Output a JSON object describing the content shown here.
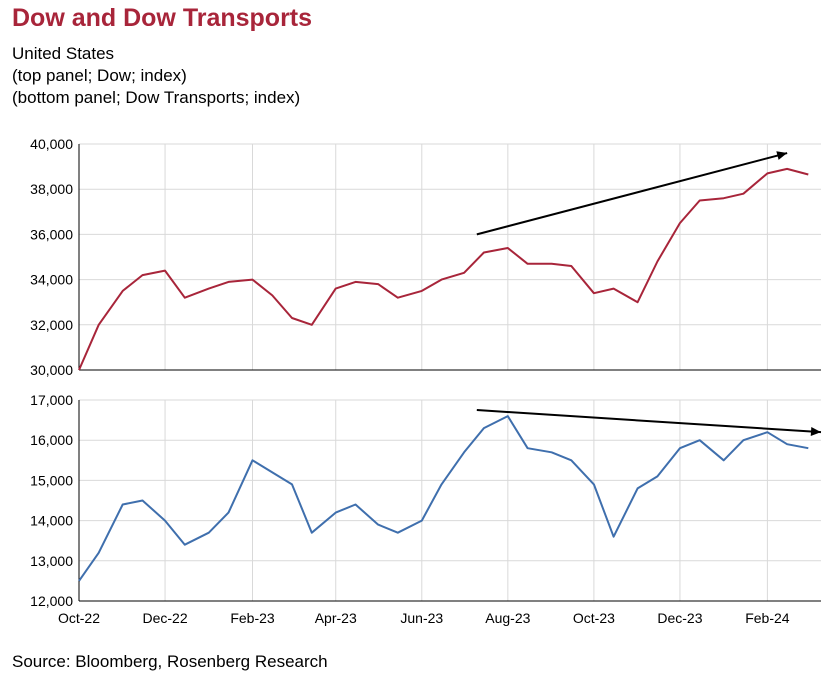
{
  "title": "Dow and Dow Transports",
  "subtitle_lines": [
    "United States",
    "(top panel; Dow; index)",
    "(bottom panel; Dow Transports; index)"
  ],
  "source": "Source: Bloomberg, Rosenberg Research",
  "colors": {
    "title": "#a8253a",
    "dow": "#a8253a",
    "transports": "#3f6fad",
    "grid": "#d9d9d9",
    "trend_arrow": "#000000"
  },
  "chart_data": [
    {
      "type": "line",
      "panel": "top",
      "series": [
        {
          "x": [
            "2022-10-01",
            "2022-10-15",
            "2022-11-01",
            "2022-11-15",
            "2022-12-01",
            "2022-12-15",
            "2023-01-01",
            "2023-01-15",
            "2023-02-01",
            "2023-02-15",
            "2023-03-01",
            "2023-03-15",
            "2023-04-01",
            "2023-04-15",
            "2023-05-01",
            "2023-05-15",
            "2023-06-01",
            "2023-06-15",
            "2023-07-01",
            "2023-07-15",
            "2023-08-01",
            "2023-08-15",
            "2023-09-01",
            "2023-09-15",
            "2023-10-01",
            "2023-10-15",
            "2023-11-01",
            "2023-11-15",
            "2023-12-01",
            "2023-12-15",
            "2024-01-01",
            "2024-01-15",
            "2024-02-01",
            "2024-02-15",
            "2024-03-01"
          ],
          "values": [
            30000,
            32000,
            33500,
            34200,
            34400,
            33200,
            33600,
            33900,
            34000,
            33300,
            32300,
            32000,
            33600,
            33900,
            33800,
            33200,
            33500,
            34000,
            34300,
            35200,
            35400,
            34700,
            34700,
            34600,
            33400,
            33600,
            33000,
            34800,
            36500,
            37500,
            37600,
            37800,
            38700,
            38900,
            38650
          ]
        }
      ],
      "ylim": [
        30000,
        40000
      ],
      "yticks": [
        "30,000",
        "32,000",
        "34,000",
        "36,000",
        "38,000",
        "40,000"
      ],
      "grid": true,
      "annotations": [
        {
          "type": "arrow",
          "from": [
            "2023-07-10",
            36000
          ],
          "to": [
            "2024-02-15",
            39600
          ]
        }
      ]
    },
    {
      "type": "line",
      "panel": "bottom",
      "series": [
        {
          "x": [
            "2022-10-01",
            "2022-10-15",
            "2022-11-01",
            "2022-11-15",
            "2022-12-01",
            "2022-12-15",
            "2023-01-01",
            "2023-01-15",
            "2023-02-01",
            "2023-02-15",
            "2023-03-01",
            "2023-03-15",
            "2023-04-01",
            "2023-04-15",
            "2023-05-01",
            "2023-05-15",
            "2023-06-01",
            "2023-06-15",
            "2023-07-01",
            "2023-07-15",
            "2023-08-01",
            "2023-08-15",
            "2023-09-01",
            "2023-09-15",
            "2023-10-01",
            "2023-10-15",
            "2023-11-01",
            "2023-11-15",
            "2023-12-01",
            "2023-12-15",
            "2024-01-01",
            "2024-01-15",
            "2024-02-01",
            "2024-02-15",
            "2024-03-01"
          ],
          "values": [
            12500,
            13200,
            14400,
            14500,
            14000,
            13400,
            13700,
            14200,
            15500,
            15200,
            14900,
            13700,
            14200,
            14400,
            13900,
            13700,
            14000,
            14900,
            15700,
            16300,
            16600,
            15800,
            15700,
            15500,
            14900,
            13600,
            14800,
            15100,
            15800,
            16000,
            15500,
            16000,
            16200,
            15900,
            15800
          ]
        }
      ],
      "ylim": [
        12000,
        17000
      ],
      "yticks": [
        "12,000",
        "13,000",
        "14,000",
        "15,000",
        "16,000",
        "17,000"
      ],
      "grid": true,
      "annotations": [
        {
          "type": "arrow",
          "from": [
            "2023-07-10",
            16750
          ],
          "to": [
            "2024-03-10",
            16200
          ]
        }
      ]
    }
  ],
  "x_axis": {
    "range": [
      "2022-10-01",
      "2024-03-10"
    ],
    "ticks": [
      {
        "label": "Oct-22",
        "date": "2022-10-01"
      },
      {
        "label": "Dec-22",
        "date": "2022-12-01"
      },
      {
        "label": "Feb-23",
        "date": "2023-02-01"
      },
      {
        "label": "Apr-23",
        "date": "2023-04-01"
      },
      {
        "label": "Jun-23",
        "date": "2023-06-01"
      },
      {
        "label": "Aug-23",
        "date": "2023-08-01"
      },
      {
        "label": "Oct-23",
        "date": "2023-10-01"
      },
      {
        "label": "Dec-23",
        "date": "2023-12-01"
      },
      {
        "label": "Feb-24",
        "date": "2024-02-01"
      }
    ]
  }
}
